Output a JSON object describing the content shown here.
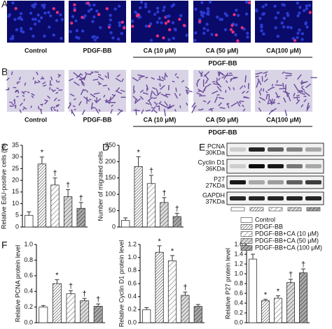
{
  "panel_labels": [
    "A",
    "B",
    "C",
    "D",
    "E",
    "F"
  ],
  "panel_a": {
    "labels": [
      "Control",
      "PDGF-BB",
      "CA (10 μM)",
      "CA (50 μM)",
      "CA(100 μM)"
    ],
    "group_label": "PDGF-BB"
  },
  "panel_b": {
    "labels": [
      "Control",
      "PDGF-BB",
      "CA (10 μM)",
      "CA (50 μM)",
      "CA(100 μM)"
    ],
    "group_label": "PDGF-BB"
  },
  "panel_e": {
    "rows": [
      [
        "PCNA",
        "30KDa"
      ],
      [
        "Cyclin D1",
        "36KDa"
      ],
      [
        "P27",
        "27KDa"
      ],
      [
        "GAPDH",
        "37KDa"
      ]
    ]
  },
  "legend": [
    "Control",
    "PDGF-BB",
    "PDGF-BB+CA (10 μM)",
    "PDGF-BB+CA (50 μM)",
    "PDGF-BB+CA (100 μM)"
  ],
  "chart_data": [
    {
      "type": "bar",
      "y_label": "Relative EdU-positive cells (%)",
      "values": [
        5,
        27,
        18,
        13,
        8
      ],
      "errors": [
        1.5,
        3,
        3,
        3,
        2.5
      ],
      "annotations": [
        null,
        "*",
        "†",
        "†",
        "†"
      ],
      "ylim": [
        0,
        35
      ],
      "yticks": [
        0,
        5,
        10,
        15,
        20,
        25,
        30,
        35
      ]
    },
    {
      "type": "bar",
      "y_label": "Number of migrated cells",
      "values": [
        20,
        185,
        133,
        75,
        32
      ],
      "errors": [
        8,
        30,
        25,
        15,
        10
      ],
      "annotations": [
        null,
        "*",
        "†",
        "†",
        "†"
      ],
      "ylim": [
        0,
        250
      ],
      "yticks": [
        0,
        50,
        100,
        150,
        200,
        250
      ]
    },
    {
      "type": "bar",
      "y_label": "Relative PCNA protein level",
      "values": [
        0.2,
        0.5,
        0.37,
        0.28,
        0.21
      ],
      "errors": [
        0.02,
        0.05,
        0.04,
        0.03,
        0.03
      ],
      "annotations": [
        null,
        "*",
        "†",
        "†",
        "†"
      ],
      "ylim": [
        0,
        1
      ],
      "yticks": [
        {
          "value": 0,
          "label": "0.0"
        },
        0.2,
        0.4,
        0.6,
        0.8,
        {
          "value": 1,
          "label": "1.0"
        }
      ]
    },
    {
      "type": "bar",
      "y_label": "Relative Cyclin D1 protein level",
      "values": [
        0.2,
        1.08,
        0.95,
        0.42,
        0.25
      ],
      "errors": [
        0.03,
        0.1,
        0.08,
        0.05,
        0.03
      ],
      "annotations": [
        null,
        "*",
        "*",
        "†",
        null
      ],
      "ylim": [
        0,
        1.2
      ],
      "yticks": [
        {
          "value": 0,
          "label": "0.0"
        },
        0.2,
        0.4,
        0.6,
        0.8,
        {
          "value": 1,
          "label": "1.0"
        },
        1.2
      ]
    },
    {
      "type": "bar",
      "y_label": "Relative P27 protein level",
      "values": [
        1.3,
        0.45,
        0.5,
        0.82,
        1.02
      ],
      "errors": [
        0.1,
        0.03,
        0.05,
        0.07,
        0.08
      ],
      "annotations": [
        null,
        "*",
        "*",
        "†",
        "†"
      ],
      "ylim": [
        0,
        1.6
      ],
      "yticks": [
        {
          "value": 0,
          "label": "0.0"
        },
        0.2,
        0.4,
        0.6,
        0.8,
        {
          "value": 1,
          "label": "1.0"
        },
        1.2,
        1.4,
        1.6
      ]
    }
  ]
}
